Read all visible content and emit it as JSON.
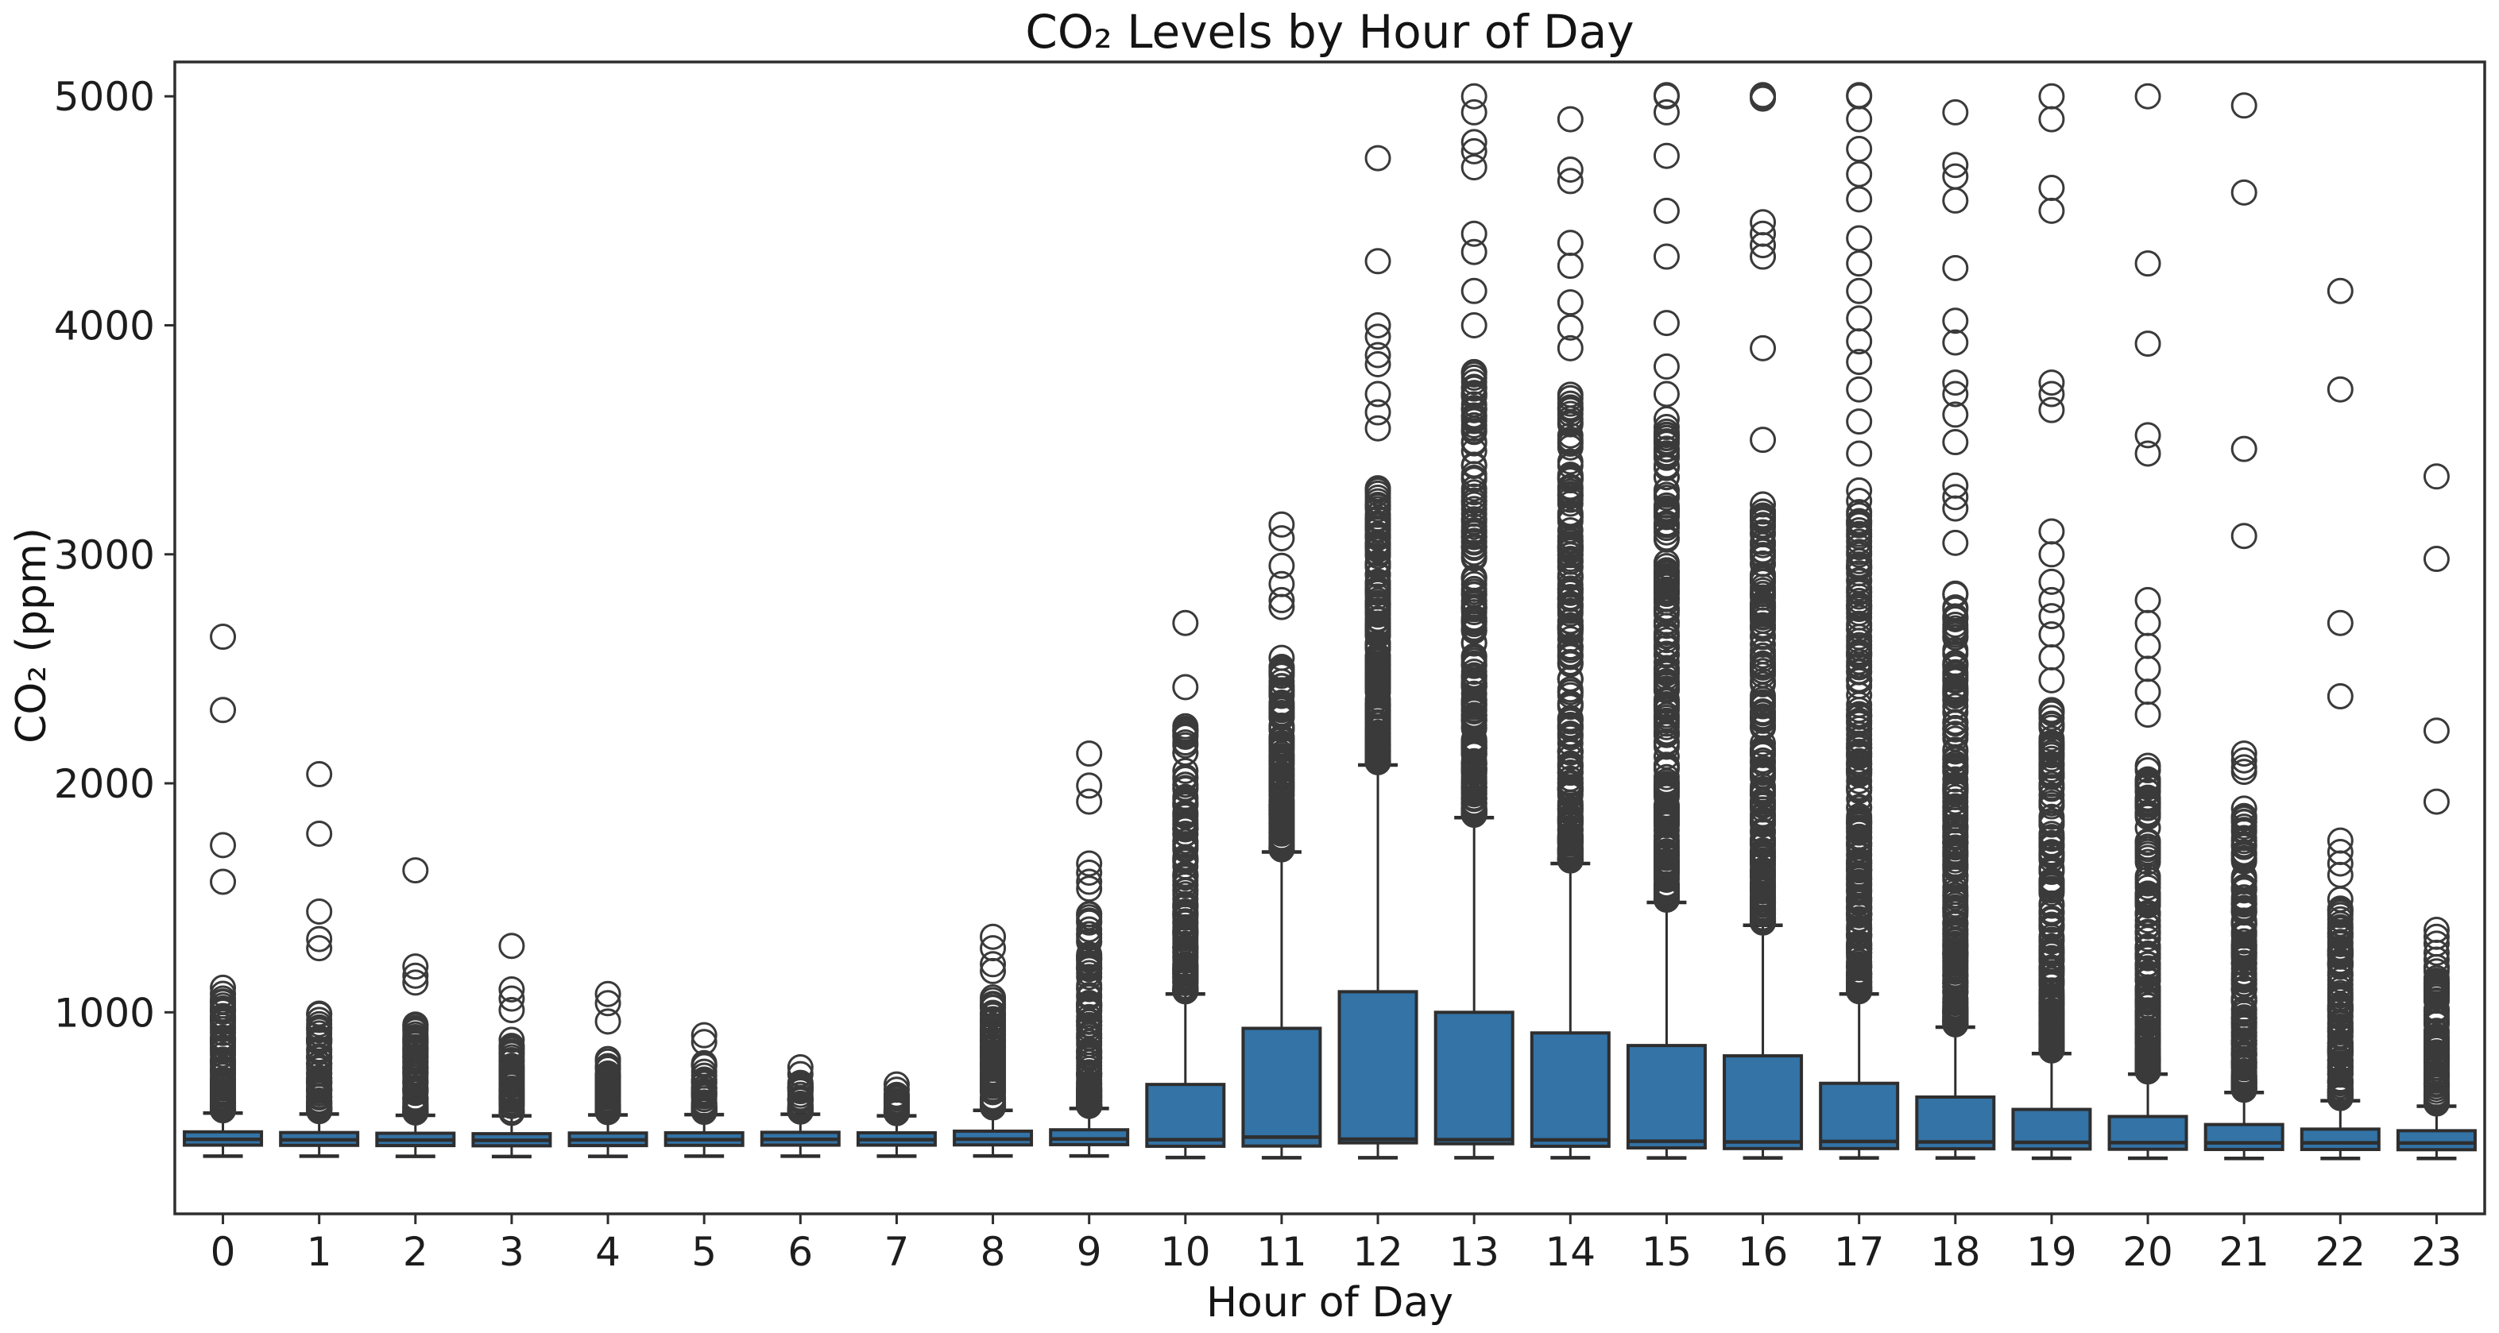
{
  "figure": {
    "title": "CO₂ Levels by Hour of Day",
    "xlabel": "Hour of Day",
    "ylabel": "CO₂ (ppm)"
  },
  "chart_data": {
    "type": "boxplot",
    "title": "CO₂ Levels by Hour of Day",
    "xlabel": "Hour of Day",
    "ylabel": "CO₂ (ppm)",
    "x_categories": [
      "0",
      "1",
      "2",
      "3",
      "4",
      "5",
      "6",
      "7",
      "8",
      "9",
      "10",
      "11",
      "12",
      "13",
      "14",
      "15",
      "16",
      "17",
      "18",
      "19",
      "20",
      "21",
      "22",
      "23"
    ],
    "yticks": [
      1000,
      2000,
      3000,
      4000,
      5000
    ],
    "ylim": [
      120,
      5150
    ],
    "grid": false,
    "legend": null,
    "box_fill_color": "#3373a6",
    "box_edge_color": "#2e2e2e",
    "flier_color": "#3a3a3a",
    "axis_color": "#2e2e2e",
    "series": [
      {
        "hour": 0,
        "whisker_low": 372,
        "q1": 420,
        "median": 445,
        "q3": 478,
        "whisker_high": 560,
        "outliers": {
          "dense_top": 1140,
          "dense_count": 90,
          "points": [
            1570,
            1730,
            2320,
            2640
          ]
        }
      },
      {
        "hour": 1,
        "whisker_low": 372,
        "q1": 419,
        "median": 443,
        "q3": 475,
        "whisker_high": 556,
        "outliers": {
          "dense_top": 1000,
          "dense_count": 80,
          "points": [
            1280,
            1320,
            1440,
            1780,
            2040
          ]
        }
      },
      {
        "hour": 2,
        "whisker_low": 371,
        "q1": 418,
        "median": 442,
        "q3": 472,
        "whisker_high": 550,
        "outliers": {
          "dense_top": 950,
          "dense_count": 70,
          "points": [
            1130,
            1160,
            1200,
            1620
          ]
        }
      },
      {
        "hour": 3,
        "whisker_low": 370,
        "q1": 417,
        "median": 441,
        "q3": 470,
        "whisker_high": 548,
        "outliers": {
          "dense_top": 890,
          "dense_count": 60,
          "points": [
            1010,
            1060,
            1100,
            1290
          ]
        }
      },
      {
        "hour": 4,
        "whisker_low": 371,
        "q1": 418,
        "median": 443,
        "q3": 473,
        "whisker_high": 552,
        "outliers": {
          "dense_top": 800,
          "dense_count": 55,
          "points": [
            960,
            1040,
            1080
          ]
        }
      },
      {
        "hour": 5,
        "whisker_low": 372,
        "q1": 419,
        "median": 444,
        "q3": 474,
        "whisker_high": 553,
        "outliers": {
          "dense_top": 780,
          "dense_count": 50,
          "points": [
            870,
            900
          ]
        }
      },
      {
        "hour": 6,
        "whisker_low": 372,
        "q1": 420,
        "median": 445,
        "q3": 476,
        "whisker_high": 555,
        "outliers": {
          "dense_top": 700,
          "dense_count": 45,
          "points": [
            730,
            760
          ]
        }
      },
      {
        "hour": 7,
        "whisker_low": 372,
        "q1": 420,
        "median": 444,
        "q3": 474,
        "whisker_high": 548,
        "outliers": {
          "dense_top": 640,
          "dense_count": 40,
          "points": [
            662,
            685
          ]
        }
      },
      {
        "hour": 8,
        "whisker_low": 373,
        "q1": 421,
        "median": 446,
        "q3": 481,
        "whisker_high": 572,
        "outliers": {
          "dense_top": 1080,
          "dense_count": 85,
          "points": [
            1180,
            1210,
            1280,
            1330
          ]
        }
      },
      {
        "hour": 9,
        "whisker_low": 373,
        "q1": 422,
        "median": 447,
        "q3": 487,
        "whisker_high": 580,
        "outliers": {
          "dense_top": 1430,
          "dense_count": 110,
          "points": [
            1540,
            1570,
            1610,
            1650,
            1920,
            1990,
            2130
          ]
        }
      },
      {
        "hour": 10,
        "whisker_low": 366,
        "q1": 415,
        "median": 444,
        "q3": 685,
        "whisker_high": 1080,
        "outliers": {
          "dense_top": 2250,
          "dense_count": 150,
          "points": [
            2420,
            2700
          ]
        }
      },
      {
        "hour": 11,
        "whisker_low": 365,
        "q1": 416,
        "median": 455,
        "q3": 930,
        "whisker_high": 1700,
        "outliers": {
          "dense_top": 2550,
          "dense_count": 170,
          "points": [
            2770,
            2800,
            2870,
            2950,
            3070,
            3130
          ]
        }
      },
      {
        "hour": 12,
        "whisker_low": 365,
        "q1": 430,
        "median": 446,
        "q3": 1090,
        "whisker_high": 2080,
        "outliers": {
          "dense_top": 3300,
          "dense_count": 200,
          "points": [
            3550,
            3620,
            3700,
            3830,
            3870,
            3950,
            4000,
            4280,
            4730
          ]
        }
      },
      {
        "hour": 13,
        "whisker_low": 365,
        "q1": 426,
        "median": 444,
        "q3": 1000,
        "whisker_high": 1850,
        "outliers": {
          "dense_top": 3800,
          "dense_count": 230,
          "points": [
            4000,
            4150,
            4320,
            4400,
            4690,
            4760,
            4800,
            4930,
            5000
          ]
        }
      },
      {
        "hour": 14,
        "whisker_low": 365,
        "q1": 415,
        "median": 443,
        "q3": 910,
        "whisker_high": 1650,
        "outliers": {
          "dense_top": 3700,
          "dense_count": 225,
          "points": [
            3900,
            3990,
            4100,
            4260,
            4360,
            4630,
            4680,
            4900
          ]
        }
      },
      {
        "hour": 15,
        "whisker_low": 364,
        "q1": 408,
        "median": 437,
        "q3": 855,
        "whisker_high": 1480,
        "outliers": {
          "dense_top": 3600,
          "dense_count": 220,
          "points": [
            3700,
            3820,
            4010,
            4300,
            4500,
            4740,
            4930,
            5000,
            5005
          ]
        }
      },
      {
        "hour": 16,
        "whisker_low": 364,
        "q1": 405,
        "median": 434,
        "q3": 810,
        "whisker_high": 1380,
        "outliers": {
          "dense_top": 3250,
          "dense_count": 210,
          "points": [
            3500,
            3900,
            4300,
            4350,
            4400,
            4450,
            4990,
            5000,
            5005
          ]
        }
      },
      {
        "hour": 17,
        "whisker_low": 364,
        "q1": 405,
        "median": 436,
        "q3": 690,
        "whisker_high": 1080,
        "outliers": {
          "dense_top": 3300,
          "dense_count": 240,
          "points": [
            3440,
            3580,
            3720,
            3840,
            3930,
            4030,
            4150,
            4270,
            4380,
            4550,
            4660,
            4770,
            4900,
            5000,
            5005
          ]
        }
      },
      {
        "hour": 18,
        "whisker_low": 364,
        "q1": 404,
        "median": 434,
        "q3": 630,
        "whisker_high": 935,
        "outliers": {
          "dense_top": 2880,
          "dense_count": 210,
          "points": [
            3050,
            3200,
            3250,
            3300,
            3490,
            3610,
            3700,
            3750,
            3925,
            4020,
            4250,
            4545,
            4650,
            4700,
            4930
          ]
        }
      },
      {
        "hour": 19,
        "whisker_low": 363,
        "q1": 403,
        "median": 432,
        "q3": 576,
        "whisker_high": 820,
        "outliers": {
          "dense_top": 2320,
          "dense_count": 185,
          "points": [
            2450,
            2550,
            2650,
            2730,
            2800,
            2880,
            3000,
            3100,
            3630,
            3700,
            3750,
            4500,
            4600,
            4900,
            5000
          ]
        }
      },
      {
        "hour": 20,
        "whisker_low": 363,
        "q1": 402,
        "median": 431,
        "q3": 545,
        "whisker_high": 730,
        "outliers": {
          "dense_top": 2100,
          "dense_count": 170,
          "points": [
            2300,
            2400,
            2500,
            2600,
            2700,
            2800,
            3440,
            3520,
            3920,
            4270,
            5000
          ]
        }
      },
      {
        "hour": 21,
        "whisker_low": 362,
        "q1": 401,
        "median": 430,
        "q3": 510,
        "whisker_high": 650,
        "outliers": {
          "dense_top": 1900,
          "dense_count": 160,
          "points": [
            2050,
            2070,
            2100,
            2130,
            3080,
            3460,
            4580,
            4960
          ]
        }
      },
      {
        "hour": 22,
        "whisker_low": 362,
        "q1": 401,
        "median": 430,
        "q3": 490,
        "whisker_high": 614,
        "outliers": {
          "dense_top": 1500,
          "dense_count": 130,
          "points": [
            1600,
            1650,
            1700,
            1750,
            2380,
            2700,
            3720,
            4150
          ]
        }
      },
      {
        "hour": 23,
        "whisker_low": 362,
        "q1": 400,
        "median": 429,
        "q3": 483,
        "whisker_high": 590,
        "outliers": {
          "dense_top": 1200,
          "dense_count": 100,
          "points": [
            1230,
            1260,
            1300,
            1330,
            1360,
            1920,
            2230,
            2980,
            3340
          ]
        }
      }
    ]
  }
}
